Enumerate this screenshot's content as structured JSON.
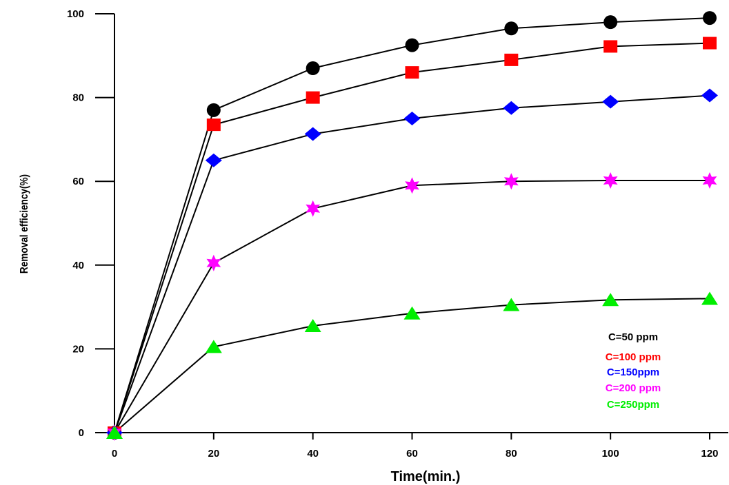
{
  "chart_data": {
    "type": "line",
    "title": "",
    "xlabel": "Time(min.)",
    "ylabel": "Removal efficiency(%)",
    "xlim": [
      0,
      120
    ],
    "ylim": [
      0,
      100
    ],
    "x_ticks": [
      0,
      20,
      40,
      60,
      80,
      100,
      120
    ],
    "y_ticks": [
      0,
      20,
      40,
      60,
      80,
      100
    ],
    "x": [
      0,
      20,
      40,
      60,
      80,
      100,
      120
    ],
    "grid": false,
    "legend_position": "bottom-right",
    "series": [
      {
        "name": "C=50 ppm",
        "color": "#000000",
        "marker": "circle",
        "values": [
          0,
          77,
          87,
          92.5,
          96.5,
          98,
          99
        ]
      },
      {
        "name": "C=100 ppm",
        "color": "#ff0000",
        "marker": "square",
        "values": [
          0,
          73.5,
          80,
          86,
          89,
          92.2,
          93
        ]
      },
      {
        "name": "C=150ppm",
        "color": "#0000ff",
        "marker": "diamond",
        "values": [
          0,
          65,
          71.3,
          75,
          77.5,
          79,
          80.5
        ]
      },
      {
        "name": "C=200 ppm",
        "color": "#ff00ff",
        "marker": "star",
        "values": [
          0,
          40.5,
          53.5,
          59,
          60,
          60.2,
          60.2
        ]
      },
      {
        "name": "C=250ppm",
        "color": "#00ee00",
        "marker": "triangle",
        "values": [
          0,
          20.5,
          25.5,
          28.5,
          30.5,
          31.7,
          32
        ]
      }
    ]
  }
}
